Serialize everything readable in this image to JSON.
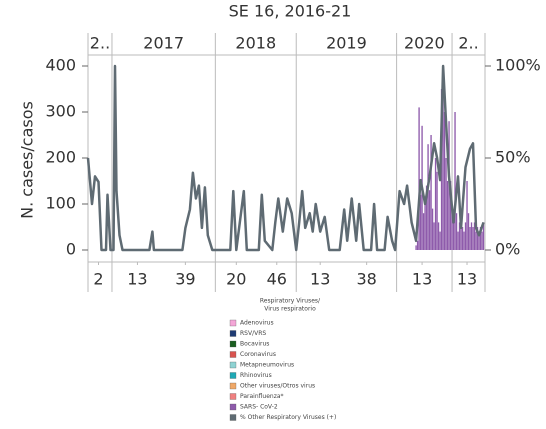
{
  "chart_data": {
    "type": "bar-line",
    "title": "SE 16, 2016-21",
    "y_label": "N. cases/casos",
    "xlim": [
      0,
      265
    ],
    "years": [
      {
        "start": 0,
        "end": 16,
        "label": "2.."
      },
      {
        "start": 16,
        "end": 85,
        "label": "2017"
      },
      {
        "start": 85,
        "end": 139,
        "label": "2018"
      },
      {
        "start": 139,
        "end": 206,
        "label": "2019"
      },
      {
        "start": 206,
        "end": 243,
        "label": "2020"
      },
      {
        "start": 243,
        "end": 265,
        "label": "2.."
      }
    ],
    "xticks": [
      {
        "value": 7,
        "label": "2"
      },
      {
        "value": 33,
        "label": "13"
      },
      {
        "value": 65,
        "label": "39"
      },
      {
        "value": 99,
        "label": "20"
      },
      {
        "value": 126,
        "label": "46"
      },
      {
        "value": 155,
        "label": "13"
      },
      {
        "value": 186,
        "label": "38"
      },
      {
        "value": 223,
        "label": "13"
      },
      {
        "value": 253,
        "label": "13"
      }
    ],
    "ylim": [
      0,
      400
    ],
    "yticks": [
      0,
      100,
      200,
      300,
      400
    ],
    "y2lim": [
      0,
      100
    ],
    "y2ticks": [
      {
        "value": 0,
        "label": "0%"
      },
      {
        "value": 50,
        "label": "50%"
      },
      {
        "value": 100,
        "label": "100%"
      }
    ],
    "legend_title": [
      "Respiratory Viruses/",
      "Virus respiratorio"
    ],
    "series": [
      {
        "name": "Adenovirus",
        "color": "#f4a6d7"
      },
      {
        "name": "RSV/VRS",
        "color": "#1f3b73"
      },
      {
        "name": "Bocavirus",
        "color": "#1b5e20"
      },
      {
        "name": "Coronavirus",
        "color": "#d9534f"
      },
      {
        "name": "Metapneumovirus",
        "color": "#8fd3d3"
      },
      {
        "name": "Rhinovirus",
        "color": "#1fa9b5"
      },
      {
        "name": "Other viruses/Otros virus",
        "color": "#f0a868"
      },
      {
        "name": "Parainfluenza*",
        "color": "#f08080"
      },
      {
        "name": "SARS- CoV-2",
        "color": "#8e5bab",
        "kind": "bar",
        "x": [
          219,
          220,
          221,
          222,
          223,
          224,
          225,
          226,
          227,
          228,
          229,
          230,
          231,
          232,
          233,
          234,
          235,
          236,
          237,
          238,
          239,
          240,
          241,
          242,
          243,
          244,
          245,
          246,
          247,
          248,
          249,
          250,
          251,
          252,
          253,
          254,
          255,
          256,
          257,
          258,
          259,
          260,
          261,
          262,
          263,
          264
        ],
        "values": [
          10,
          20,
          310,
          120,
          270,
          80,
          100,
          140,
          230,
          130,
          250,
          90,
          60,
          200,
          170,
          60,
          40,
          350,
          400,
          300,
          200,
          150,
          280,
          150,
          100,
          60,
          300,
          80,
          40,
          60,
          80,
          50,
          40,
          60,
          150,
          80,
          50,
          60,
          50,
          60,
          40,
          50,
          30,
          50,
          40,
          60
        ]
      },
      {
        "name": "% Other Respiratory Viruses (+)",
        "color": "#5f6b73",
        "kind": "line",
        "axis": "y2",
        "x": [
          0,
          2.7,
          4.7,
          7,
          9,
          12,
          13,
          15,
          17,
          18,
          19,
          21,
          23,
          41,
          43,
          44,
          63,
          65,
          68,
          70,
          72,
          74,
          76,
          78,
          80,
          83,
          95,
          97,
          99,
          104,
          106,
          114,
          116,
          118,
          123,
          125,
          127,
          130,
          133,
          136,
          139,
          141,
          143,
          145,
          148,
          150,
          152,
          155,
          158,
          161,
          168,
          171,
          173,
          176,
          179,
          181,
          184,
          189,
          191,
          193,
          198,
          200,
          203,
          205,
          208,
          211,
          213,
          216,
          219,
          222,
          225,
          228,
          231,
          233,
          235,
          237,
          239,
          241,
          244,
          247,
          249,
          252,
          255,
          257,
          259,
          261,
          264
        ],
        "values": [
          50,
          25,
          40,
          37,
          0,
          0,
          30,
          0,
          0,
          100,
          32,
          8,
          0,
          0,
          10,
          0,
          0,
          12,
          22,
          42,
          28,
          35,
          12,
          34,
          8,
          0,
          0,
          32,
          0,
          32,
          0,
          0,
          30,
          5,
          0,
          15,
          28,
          10,
          28,
          20,
          0,
          15,
          32,
          12,
          20,
          10,
          25,
          10,
          18,
          0,
          0,
          22,
          5,
          28,
          5,
          25,
          0,
          0,
          25,
          0,
          0,
          18,
          5,
          0,
          32,
          25,
          35,
          15,
          5,
          38,
          25,
          40,
          58,
          50,
          38,
          100,
          70,
          40,
          15,
          40,
          12,
          45,
          55,
          58,
          12,
          8,
          15
        ]
      }
    ]
  }
}
